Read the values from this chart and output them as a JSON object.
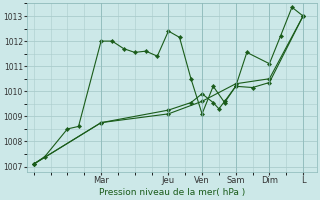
{
  "bg_color": "#cce8e8",
  "grid_color": "#aacccc",
  "line_color": "#1a5c1a",
  "marker_color": "#1a5c1a",
  "xlabel": "Pression niveau de la mer( hPa )",
  "ylim": [
    1006.8,
    1013.5
  ],
  "yticks": [
    1007,
    1008,
    1009,
    1010,
    1011,
    1012,
    1013
  ],
  "day_labels": [
    "Mar",
    "Jeu",
    "Ven",
    "Sam",
    "Dim",
    "L"
  ],
  "day_positions": [
    2.0,
    4.0,
    5.0,
    6.0,
    7.0,
    8.0
  ],
  "xlim": [
    -0.2,
    8.4
  ],
  "series1": {
    "x": [
      0.0,
      0.33,
      1.0,
      1.33,
      2.0,
      2.33,
      2.67,
      3.0,
      3.33,
      3.67,
      4.0,
      4.33,
      4.67,
      5.0,
      5.33,
      5.67,
      6.0,
      6.33,
      7.0,
      7.33,
      7.67,
      8.0
    ],
    "y": [
      1007.1,
      1007.4,
      1008.5,
      1008.6,
      1012.0,
      1012.0,
      1011.7,
      1011.55,
      1011.6,
      1011.4,
      1012.4,
      1012.15,
      1010.5,
      1009.1,
      1010.2,
      1009.55,
      1010.2,
      1011.55,
      1011.1,
      1012.2,
      1013.35,
      1013.0
    ]
  },
  "series2": {
    "x": [
      0.0,
      2.0,
      4.0,
      4.67,
      5.0,
      5.33,
      5.5,
      5.67,
      6.0,
      6.5,
      7.0,
      8.0
    ],
    "y": [
      1007.1,
      1008.75,
      1009.25,
      1009.55,
      1009.9,
      1009.55,
      1009.3,
      1009.6,
      1010.2,
      1010.15,
      1010.35,
      1013.0
    ]
  },
  "series3": {
    "x": [
      0.0,
      2.0,
      4.0,
      5.0,
      6.0,
      7.0,
      8.0
    ],
    "y": [
      1007.1,
      1008.75,
      1009.1,
      1009.6,
      1010.3,
      1010.5,
      1013.0
    ]
  },
  "figsize": [
    3.2,
    2.0
  ],
  "dpi": 100
}
